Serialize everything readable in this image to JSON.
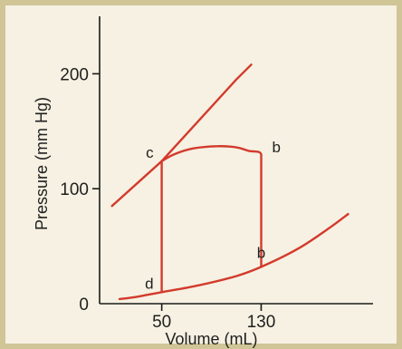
{
  "chart_data": {
    "type": "line",
    "xlabel": "Volume (mL)",
    "ylabel": "Pressure (mm Hg)",
    "xlim": [
      0,
      220
    ],
    "ylim": [
      0,
      250
    ],
    "x_ticks": [
      50,
      130
    ],
    "y_ticks": [
      0,
      100,
      200
    ],
    "grid": false,
    "line_color": "#d33a2c",
    "series": [
      {
        "values": [
          [
            10,
            85
          ],
          [
            50,
            124
          ],
          [
            110,
            195
          ],
          [
            122,
            208
          ]
        ]
      },
      {
        "values": [
          [
            16,
            4
          ],
          [
            30,
            6
          ],
          [
            50,
            10
          ],
          [
            80,
            16
          ],
          [
            110,
            24
          ],
          [
            130,
            32
          ],
          [
            160,
            48
          ],
          [
            185,
            66
          ],
          [
            200,
            78
          ]
        ]
      },
      {
        "values": [
          [
            50,
            10
          ],
          [
            50,
            124
          ],
          [
            60,
            130
          ],
          [
            75,
            135
          ],
          [
            95,
            137
          ],
          [
            110,
            136
          ],
          [
            120,
            133
          ],
          [
            128,
            132
          ],
          [
            130,
            130
          ],
          [
            130,
            32
          ]
        ]
      }
    ],
    "point_labels": [
      {
        "text": "c",
        "x": 50,
        "y": 124
      },
      {
        "text": "b",
        "x": 130,
        "y": 130
      },
      {
        "text": "d",
        "x": 50,
        "y": 10
      },
      {
        "text": "b",
        "x": 130,
        "y": 32
      }
    ]
  }
}
